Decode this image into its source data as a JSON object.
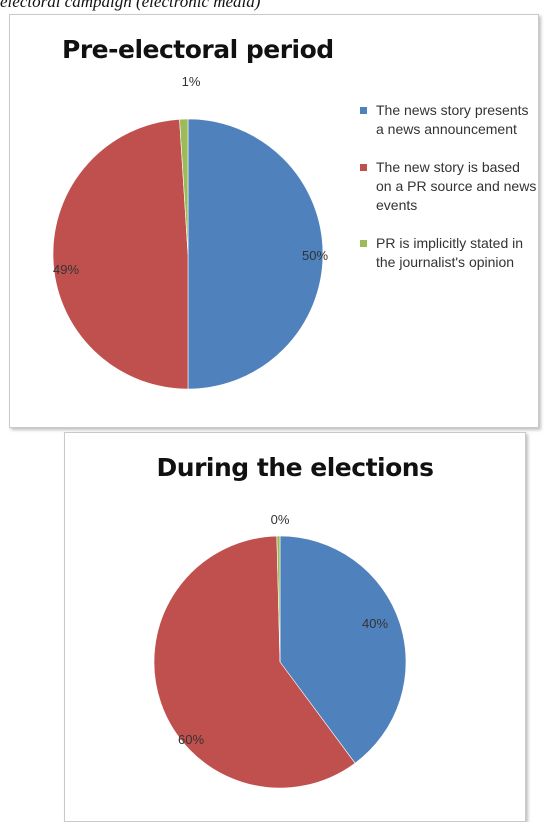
{
  "caption": "electoral campaign (electronic media)",
  "legend": [
    {
      "label": "The news story presents a news announcement",
      "color": "#4f81bd"
    },
    {
      "label": "The new story is based on a PR source and news events",
      "color": "#c0504d"
    },
    {
      "label": "PR is implicitly stated in the journalist's opinion",
      "color": "#9bbb59"
    }
  ],
  "chart_data": [
    {
      "type": "pie",
      "title": "Pre-electoral period",
      "legend_position": "right",
      "labels": [
        "The news story presents a news announcement",
        "The new story is based on a PR source and news events",
        "PR is implicitly stated in the journalist's opinion"
      ],
      "values": [
        50,
        49,
        1
      ],
      "data_labels": [
        "50%",
        "49%",
        "1%"
      ],
      "colors": [
        "#4f81bd",
        "#c0504d",
        "#9bbb59"
      ]
    },
    {
      "type": "pie",
      "title": "During the elections",
      "labels": [
        "The news story presents a news announcement",
        "The new story is based on a PR source and news events",
        "PR is implicitly stated in the journalist's opinion"
      ],
      "values": [
        40,
        60,
        0.4
      ],
      "data_labels": [
        "40%",
        "60%",
        "0%"
      ],
      "colors": [
        "#4f81bd",
        "#c0504d",
        "#9bbb59"
      ]
    }
  ]
}
